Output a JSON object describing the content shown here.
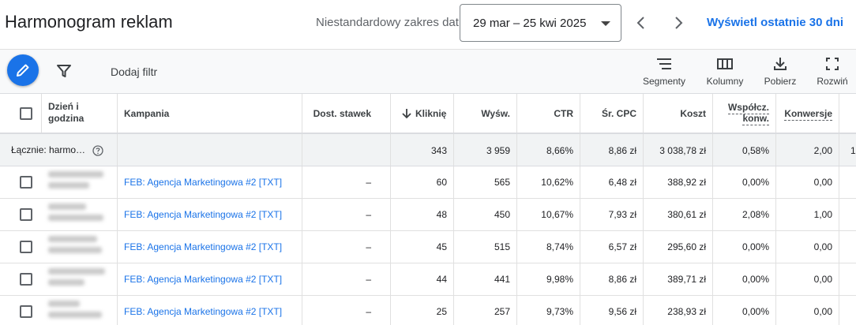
{
  "header": {
    "title": "Harmonogram reklam",
    "range_label": "Niestandardowy zakres dat",
    "date_range": "29 mar – 25 kwi 2025",
    "last30_link": "Wyświetl ostatnie 30 dni"
  },
  "toolbar": {
    "add_filter": "Dodaj filtr",
    "segments": "Segmenty",
    "columns": "Kolumny",
    "download": "Pobierz",
    "expand": "Rozwiń"
  },
  "table": {
    "columns": {
      "day": "Dzień i godzina",
      "campaign": "Kampania",
      "bid_adj": "Dost. stawek",
      "clicks": "Kliknięcia",
      "impr": "Wyśw.",
      "ctr": "CTR",
      "cpc": "Śr. CPC",
      "cost": "Koszt",
      "conv_rate": "Współcz. konw.",
      "conversions": "Konwersje"
    },
    "sort_column": "clicks",
    "sort_direction": "descending",
    "total": {
      "label": "Łącznie: harmo…",
      "clicks": "343",
      "impr": "3 959",
      "ctr": "8,66%",
      "cpc": "8,86 zł",
      "cost": "3 038,78 zł",
      "conv_rate": "0,58%",
      "conversions": "2,00",
      "overflow": "1"
    },
    "rows": [
      {
        "campaign": "FEB: Agencja Marketingowa #2 [TXT]",
        "bid_adj": "–",
        "clicks": "60",
        "impr": "565",
        "ctr": "10,62%",
        "cpc": "6,48 zł",
        "cost": "388,92 zł",
        "conv_rate": "0,00%",
        "conversions": "0,00"
      },
      {
        "campaign": "FEB: Agencja Marketingowa #2 [TXT]",
        "bid_adj": "–",
        "clicks": "48",
        "impr": "450",
        "ctr": "10,67%",
        "cpc": "7,93 zł",
        "cost": "380,61 zł",
        "conv_rate": "2,08%",
        "conversions": "1,00"
      },
      {
        "campaign": "FEB: Agencja Marketingowa #2 [TXT]",
        "bid_adj": "–",
        "clicks": "45",
        "impr": "515",
        "ctr": "8,74%",
        "cpc": "6,57 zł",
        "cost": "295,60 zł",
        "conv_rate": "0,00%",
        "conversions": "0,00"
      },
      {
        "campaign": "FEB: Agencja Marketingowa #2 [TXT]",
        "bid_adj": "–",
        "clicks": "44",
        "impr": "441",
        "ctr": "9,98%",
        "cpc": "8,86 zł",
        "cost": "389,71 zł",
        "conv_rate": "0,00%",
        "conversions": "0,00"
      },
      {
        "campaign": "FEB: Agencja Marketingowa #2 [TXT]",
        "bid_adj": "–",
        "clicks": "25",
        "impr": "257",
        "ctr": "9,73%",
        "cpc": "9,56 zł",
        "cost": "238,93 zł",
        "conv_rate": "0,00%",
        "conversions": "0,00"
      }
    ]
  },
  "colors": {
    "accent": "#1a73e8",
    "total_row_bg": "#f1f3f4",
    "toolbar_bg": "#f8f9fa"
  },
  "icons": [
    "edit-pencil-icon",
    "filter-icon",
    "segments-icon",
    "columns-icon",
    "download-icon",
    "expand-icon",
    "chevron-left-icon",
    "chevron-right-icon",
    "dropdown-caret-icon",
    "sort-arrow-down-icon",
    "help-icon"
  ]
}
